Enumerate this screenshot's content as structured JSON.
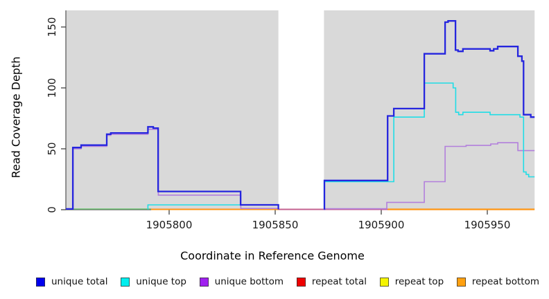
{
  "chart_data": {
    "type": "line",
    "title": "",
    "xlabel": "Coordinate in Reference Genome",
    "ylabel": "Read Coverage Depth",
    "xlim": [
      1905751,
      1905972
    ],
    "ylim": [
      0,
      163
    ],
    "grid": false,
    "panel_color": "#D9D9D9",
    "axis_color": "#333333",
    "tick_label_color": "#1a1a1a",
    "x_tick_values": [
      1905800,
      1905850,
      1905900,
      1905950
    ],
    "x_tick_labels": [
      "1905800",
      "1905850",
      "1905900",
      "1905950"
    ],
    "y_tick_values": [
      0,
      50,
      100,
      150
    ],
    "y_tick_labels": [
      "0",
      "50",
      "100",
      "150"
    ],
    "background_regions": [
      {
        "name": "covered-region-left",
        "x_start": 1905751.3,
        "x_end": 1905851.5
      },
      {
        "name": "covered-region-right",
        "x_start": 1905873.0,
        "x_end": 1905972.3
      }
    ],
    "legend": [
      {
        "label": "unique total",
        "color": "#0000EE"
      },
      {
        "label": "unique top",
        "color": "#00EEEE"
      },
      {
        "label": "unique bottom",
        "color": "#A020F0"
      },
      {
        "label": "repeat total",
        "color": "#EE0000"
      },
      {
        "label": "repeat top",
        "color": "#F5F500"
      },
      {
        "label": "repeat bottom",
        "color": "#FFA010"
      }
    ],
    "series": [
      {
        "name": "repeat-top-zero-blend",
        "color": "#79C87E",
        "width": 1.6,
        "paths": [
          [
            [
              1905751.3,
              0.6
            ],
            [
              1905791.5,
              0.6
            ]
          ]
        ]
      },
      {
        "name": "repeat-bottom-zero-left",
        "color": "#FF9412",
        "width": 2.1,
        "paths": [
          [
            [
              1905791.5,
              0.3
            ],
            [
              1905851.5,
              0.3
            ]
          ]
        ]
      },
      {
        "name": "repeat-total-zero",
        "color": "#C4608F",
        "width": 2.0,
        "paths": [
          [
            [
              1905851.5,
              0.3
            ],
            [
              1905903.0,
              0.3
            ]
          ]
        ]
      },
      {
        "name": "repeat-bottom-zero-right",
        "color": "#FF9412",
        "width": 2.2,
        "paths": [
          [
            [
              1905903.0,
              0.3
            ],
            [
              1905972.3,
              0.3
            ]
          ]
        ]
      },
      {
        "name": "unique-bottom",
        "color": "#B27FDC",
        "width": 1.6,
        "paths": [
          [
            [
              1905754.6,
              0.5
            ],
            [
              1905754.7,
              50
            ],
            [
              1905758.5,
              52
            ],
            [
              1905770.6,
              61
            ],
            [
              1905772.5,
              62
            ],
            [
              1905790.0,
              66
            ],
            [
              1905794.9,
              12
            ],
            [
              1905833.8,
              1
            ],
            [
              1905851.5,
              0.5
            ]
          ],
          [
            [
              1905873.0,
              0.8
            ],
            [
              1905902.6,
              6
            ],
            [
              1905920.3,
              23
            ],
            [
              1905930.1,
              52
            ],
            [
              1905940.0,
              52.8
            ],
            [
              1905951.6,
              54
            ],
            [
              1905954.9,
              55
            ],
            [
              1905964.4,
              48.5
            ],
            [
              1905972.3,
              48.5
            ]
          ]
        ]
      },
      {
        "name": "unique-top",
        "color": "#1FDDE6",
        "width": 1.6,
        "paths": [
          [
            [
              1905789.9,
              0.5
            ],
            [
              1905790.0,
              4
            ],
            [
              1905851.5,
              0.3
            ]
          ],
          [
            [
              1905873.0,
              0.5
            ],
            [
              1905873.1,
              23
            ],
            [
              1905905.9,
              76
            ],
            [
              1905920.3,
              104
            ],
            [
              1905933.9,
              100
            ],
            [
              1905935.1,
              80
            ],
            [
              1905936.5,
              78
            ],
            [
              1905938.5,
              80
            ],
            [
              1905951.3,
              78
            ],
            [
              1905965.4,
              76
            ],
            [
              1905967.1,
              31
            ],
            [
              1905968.3,
              29
            ],
            [
              1905969.5,
              27
            ],
            [
              1905972.3,
              27
            ]
          ]
        ]
      },
      {
        "name": "unique-total",
        "color": "#2525DE",
        "width": 2.3,
        "paths": [
          [
            [
              1905751.3,
              0.6
            ],
            [
              1905754.6,
              51
            ],
            [
              1905758.5,
              53
            ],
            [
              1905770.6,
              62
            ],
            [
              1905772.5,
              63
            ],
            [
              1905790.0,
              68
            ],
            [
              1905792.5,
              67
            ],
            [
              1905794.8,
              15
            ],
            [
              1905833.7,
              4
            ],
            [
              1905851.5,
              0.3
            ]
          ],
          [
            [
              1905873.0,
              0.5
            ],
            [
              1905873.2,
              24
            ],
            [
              1905903.0,
              77
            ],
            [
              1905905.9,
              83
            ],
            [
              1905920.3,
              128
            ],
            [
              1905930.1,
              154
            ],
            [
              1905931.5,
              155
            ],
            [
              1905935.0,
              131
            ],
            [
              1905936.2,
              130
            ],
            [
              1905938.5,
              132
            ],
            [
              1905951.3,
              130.5
            ],
            [
              1905953.0,
              132
            ],
            [
              1905954.9,
              134
            ],
            [
              1905964.4,
              126
            ],
            [
              1905966.3,
              122
            ],
            [
              1905967.1,
              78
            ],
            [
              1905970.5,
              76
            ],
            [
              1905972.3,
              76
            ]
          ]
        ]
      }
    ]
  }
}
